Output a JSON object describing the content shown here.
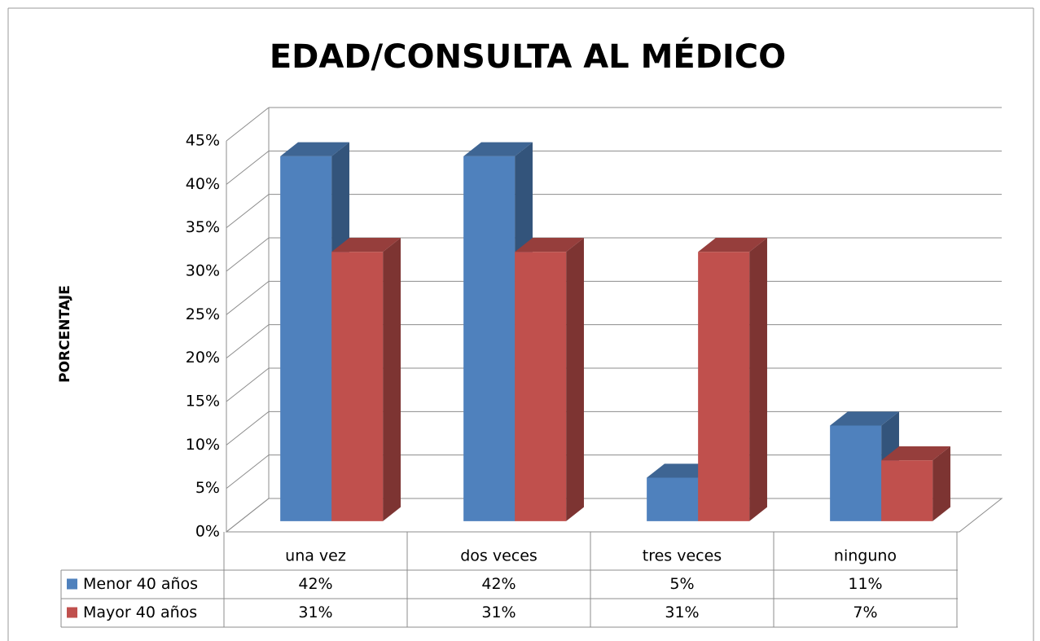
{
  "chart_data": {
    "type": "bar3d",
    "title": "EDAD/CONSULTA AL MÉDICO",
    "y_label": "PORCENTAJE",
    "categories": [
      "una vez",
      "dos veces",
      "tres veces",
      "ninguno"
    ],
    "series": [
      {
        "name": "Menor 40 años",
        "color": "#4f81bd",
        "values": [
          42,
          42,
          5,
          11
        ],
        "value_labels": [
          "42%",
          "42%",
          "5%",
          "11%"
        ]
      },
      {
        "name": "Mayor 40 años",
        "color": "#c0504d",
        "values": [
          31,
          31,
          31,
          7
        ],
        "value_labels": [
          "31%",
          "31%",
          "31%",
          "7%"
        ]
      }
    ],
    "ylim": [
      0,
      45
    ],
    "yticks": [
      {
        "value": 0,
        "label": "0%"
      },
      {
        "value": 5,
        "label": "5%"
      },
      {
        "value": 10,
        "label": "10%"
      },
      {
        "value": 15,
        "label": "15%"
      },
      {
        "value": 20,
        "label": "20%"
      },
      {
        "value": 25,
        "label": "25%"
      },
      {
        "value": 30,
        "label": "30%"
      },
      {
        "value": 35,
        "label": "35%"
      },
      {
        "value": 40,
        "label": "40%"
      },
      {
        "value": 45,
        "label": "45%"
      }
    ],
    "grid": true,
    "data_table": true
  }
}
